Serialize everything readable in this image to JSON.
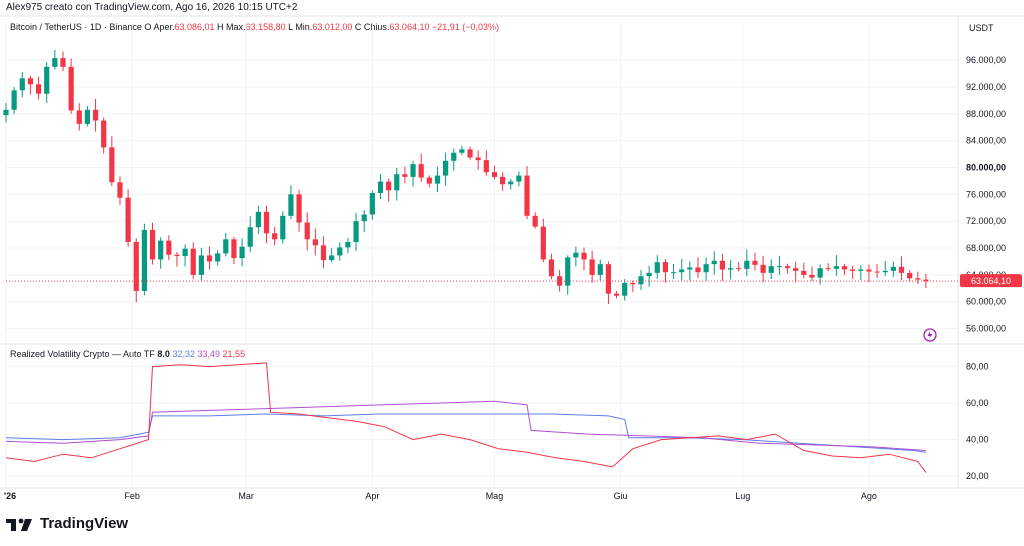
{
  "header": {
    "text": "Alex975 creato con TradingView.com, Ago 16, 2026 10:15 UTC+2"
  },
  "symbol": {
    "title": "Bitcoin / TetherUS · 1D · Binance",
    "open_label": "O",
    "open_prefix": "Aper.",
    "open": "63.086,01",
    "high_label": "H",
    "high_prefix": "Max.",
    "high": "63.158,80",
    "low_label": "L",
    "low_prefix": "Min.",
    "low": "63.012,00",
    "close_label": "C",
    "close_prefix": "Chius.",
    "close": "63.064,10",
    "change": "−21,91 (−0,03%)"
  },
  "currency": "USDT",
  "last_price_label": "63.064,10",
  "volatility": {
    "title": "Realized Volatility Crypto — Auto TF",
    "tf": "8.0",
    "blue": "32,32",
    "purple": "33,49",
    "red": "21,55"
  },
  "brand": {
    "name": "TradingView"
  },
  "colors": {
    "up": "#089981",
    "down": "#F23645",
    "blue": "#5B7FE8",
    "purple": "#B04FD4",
    "red": "#F23645",
    "grid": "#F0F3FA",
    "axis": "#E0E3EB"
  },
  "chart_data": [
    {
      "type": "candlestick",
      "title": "Bitcoin / TetherUS · 1D · Binance",
      "x_ticks": [
        "'26",
        "Feb",
        "Mar",
        "Apr",
        "Mag",
        "Giu",
        "Lug",
        "Ago"
      ],
      "y_ticks": [
        "56.000,00",
        "60.000,00",
        "64.000,00",
        "68.000,00",
        "72.000,00",
        "76.000,00",
        "80.000,00",
        "84.000,00",
        "88.000,00",
        "92.000,00",
        "96.000,00"
      ],
      "ylim": [
        54000,
        99000
      ],
      "last_price": 63064.1,
      "series": [
        {
          "name": "close",
          "x": [
            "2026-01-01",
            "2026-01-03",
            "2026-01-05",
            "2026-01-07",
            "2026-01-09",
            "2026-01-11",
            "2026-01-13",
            "2026-01-15",
            "2026-01-17",
            "2026-01-19",
            "2026-01-21",
            "2026-01-23",
            "2026-01-25",
            "2026-01-27",
            "2026-01-29",
            "2026-01-31",
            "2026-02-02",
            "2026-02-04",
            "2026-02-06",
            "2026-02-08",
            "2026-02-10",
            "2026-02-12",
            "2026-02-14",
            "2026-02-16",
            "2026-02-18",
            "2026-02-20",
            "2026-02-22",
            "2026-02-24",
            "2026-02-26",
            "2026-02-28",
            "2026-03-02",
            "2026-03-04",
            "2026-03-06",
            "2026-03-08",
            "2026-03-10",
            "2026-03-12",
            "2026-03-14",
            "2026-03-16",
            "2026-03-18",
            "2026-03-20",
            "2026-03-22",
            "2026-03-24",
            "2026-03-26",
            "2026-03-28",
            "2026-03-30",
            "2026-04-01",
            "2026-04-03",
            "2026-04-05",
            "2026-04-07",
            "2026-04-09",
            "2026-04-11",
            "2026-04-13",
            "2026-04-15",
            "2026-04-17",
            "2026-04-19",
            "2026-04-21",
            "2026-04-23",
            "2026-04-25",
            "2026-04-27",
            "2026-04-29",
            "2026-05-01",
            "2026-05-03",
            "2026-05-05",
            "2026-05-07",
            "2026-05-09",
            "2026-05-11",
            "2026-05-13",
            "2026-05-15",
            "2026-05-17",
            "2026-05-19",
            "2026-05-21",
            "2026-05-23",
            "2026-05-25",
            "2026-05-27",
            "2026-05-29",
            "2026-05-31",
            "2026-06-02",
            "2026-06-04",
            "2026-06-06",
            "2026-06-08",
            "2026-06-10",
            "2026-06-12",
            "2026-06-14",
            "2026-06-16",
            "2026-06-18",
            "2026-06-20",
            "2026-06-22",
            "2026-06-24",
            "2026-06-26",
            "2026-06-28",
            "2026-06-30",
            "2026-07-02",
            "2026-07-04",
            "2026-07-06",
            "2026-07-08",
            "2026-07-10",
            "2026-07-12",
            "2026-07-14",
            "2026-07-16",
            "2026-07-18",
            "2026-07-20",
            "2026-07-22",
            "2026-07-24",
            "2026-07-26",
            "2026-07-28",
            "2026-07-30",
            "2026-08-01",
            "2026-08-03",
            "2026-08-05",
            "2026-08-07",
            "2026-08-09",
            "2026-08-11",
            "2026-08-13",
            "2026-08-15"
          ],
          "values": [
            88600,
            91500,
            93300,
            92400,
            91000,
            95000,
            96300,
            95000,
            88500,
            86500,
            88600,
            87000,
            83000,
            77800,
            75500,
            68900,
            61600,
            70700,
            66300,
            69100,
            67000,
            66800,
            67900,
            64000,
            66900,
            66000,
            67200,
            69300,
            66500,
            68200,
            71100,
            73400,
            70200,
            69300,
            72800,
            76000,
            71800,
            69300,
            68400,
            66200,
            66900,
            68100,
            68900,
            72000,
            73000,
            76200,
            77900,
            76600,
            79000,
            78600,
            80500,
            78500,
            77600,
            78800,
            81000,
            82200,
            82700,
            81500,
            81100,
            79300,
            78600,
            77500,
            77900,
            78800,
            72800,
            71200,
            66300,
            63800,
            62400,
            66600,
            67300,
            66300,
            64000,
            65600,
            61200,
            60900,
            62800,
            62600,
            63800,
            64300,
            65900,
            64400,
            64400,
            64800,
            65100,
            64400,
            65600,
            66100,
            64800,
            65000,
            64900,
            66100,
            65500,
            64300,
            65300,
            65300,
            65000,
            64600,
            64000,
            63600,
            65000,
            64900,
            65300,
            64800,
            64600,
            64800,
            64500,
            64400,
            64600,
            65200,
            64300,
            63500,
            63300,
            63064
          ]
        }
      ]
    },
    {
      "type": "line",
      "title": "Realized Volatility Crypto — Auto TF",
      "x_ticks": [
        "'26",
        "Feb",
        "Mar",
        "Apr",
        "Mag",
        "Giu",
        "Lug",
        "Ago"
      ],
      "y_ticks": [
        "20,00",
        "40,00",
        "60,00",
        "80,00"
      ],
      "ylim": [
        14,
        88
      ],
      "series": [
        {
          "name": "32,32",
          "color": "#5B7FE8",
          "x": [
            "2026-01-01",
            "2026-01-15",
            "2026-01-29",
            "2026-02-05",
            "2026-02-06",
            "2026-02-20",
            "2026-03-06",
            "2026-03-20",
            "2026-04-03",
            "2026-04-17",
            "2026-05-01",
            "2026-05-15",
            "2026-05-29",
            "2026-06-02",
            "2026-06-03",
            "2026-06-17",
            "2026-07-01",
            "2026-07-15",
            "2026-07-29",
            "2026-08-12",
            "2026-08-15"
          ],
          "values": [
            41,
            40,
            41,
            44,
            53,
            53,
            54,
            53,
            54,
            54,
            54,
            54,
            53,
            51,
            41,
            41,
            40,
            38,
            36,
            34,
            33
          ]
        },
        {
          "name": "33,49",
          "color": "#B04FD4",
          "x": [
            "2026-01-01",
            "2026-01-15",
            "2026-01-29",
            "2026-02-05",
            "2026-02-06",
            "2026-02-20",
            "2026-03-06",
            "2026-03-20",
            "2026-04-03",
            "2026-04-17",
            "2026-05-01",
            "2026-05-09",
            "2026-05-10",
            "2026-05-24",
            "2026-06-07",
            "2026-06-21",
            "2026-07-05",
            "2026-07-19",
            "2026-08-02",
            "2026-08-15"
          ],
          "values": [
            39,
            38,
            40,
            42,
            55,
            56,
            57,
            58,
            59,
            60,
            61,
            59,
            45,
            43,
            42,
            41,
            38,
            37,
            36,
            34
          ]
        },
        {
          "name": "21,55",
          "color": "#F23645",
          "x": [
            "2026-01-01",
            "2026-01-08",
            "2026-01-15",
            "2026-01-22",
            "2026-01-29",
            "2026-02-05",
            "2026-02-06",
            "2026-02-13",
            "2026-02-20",
            "2026-02-27",
            "2026-03-06",
            "2026-03-07",
            "2026-03-14",
            "2026-03-21",
            "2026-03-28",
            "2026-04-04",
            "2026-04-11",
            "2026-04-18",
            "2026-04-25",
            "2026-05-02",
            "2026-05-09",
            "2026-05-16",
            "2026-05-23",
            "2026-05-30",
            "2026-06-04",
            "2026-06-11",
            "2026-06-18",
            "2026-06-25",
            "2026-07-02",
            "2026-07-09",
            "2026-07-16",
            "2026-07-23",
            "2026-07-30",
            "2026-08-06",
            "2026-08-13",
            "2026-08-15"
          ],
          "values": [
            30,
            28,
            32,
            30,
            35,
            40,
            80,
            81,
            80,
            81,
            82,
            55,
            54,
            52,
            50,
            47,
            40,
            43,
            40,
            35,
            33,
            30,
            28,
            25,
            35,
            40,
            41,
            42,
            40,
            43,
            34,
            31,
            30,
            32,
            28,
            22
          ]
        }
      ]
    }
  ]
}
